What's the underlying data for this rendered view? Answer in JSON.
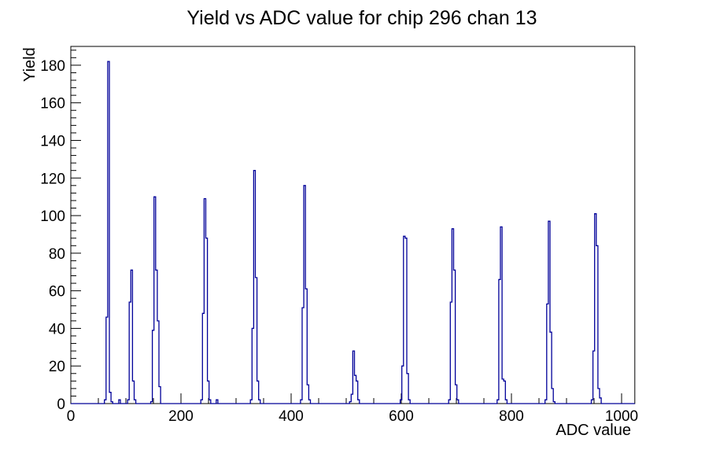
{
  "chart_data": {
    "type": "bar",
    "title": "Yield vs ADC value for chip 296 chan 13",
    "xlabel": "ADC value",
    "ylabel": "Yield",
    "xlim": [
      0,
      1024
    ],
    "ylim": [
      0,
      190
    ],
    "x_major_ticks": [
      0,
      200,
      400,
      600,
      800,
      1000
    ],
    "x_minor_step": 50,
    "y_major_ticks": [
      0,
      20,
      40,
      60,
      80,
      100,
      120,
      140,
      160,
      180
    ],
    "y_minor_step": 4,
    "grid": "off",
    "legend": "none",
    "line_color": "#000099",
    "frame_color": "#000000",
    "background_color": "#ffffff",
    "bin_width": 3,
    "peaks": [
      {
        "adc": 67,
        "yield": 182
      },
      {
        "adc": 109,
        "yield": 71
      },
      {
        "adc": 151,
        "yield": 110
      },
      {
        "adc": 242,
        "yield": 109
      },
      {
        "adc": 332,
        "yield": 124
      },
      {
        "adc": 423,
        "yield": 116
      },
      {
        "adc": 512,
        "yield": 28
      },
      {
        "adc": 604,
        "yield": 89
      },
      {
        "adc": 692,
        "yield": 93
      },
      {
        "adc": 780,
        "yield": 94
      },
      {
        "adc": 867,
        "yield": 97
      },
      {
        "adc": 951,
        "yield": 101
      }
    ],
    "bins": [
      [
        61,
        2
      ],
      [
        64,
        46
      ],
      [
        67,
        182
      ],
      [
        70,
        6
      ],
      [
        73,
        1
      ],
      [
        87,
        2
      ],
      [
        103,
        2
      ],
      [
        106,
        54
      ],
      [
        109,
        71
      ],
      [
        112,
        12
      ],
      [
        115,
        2
      ],
      [
        145,
        1
      ],
      [
        148,
        39
      ],
      [
        151,
        110
      ],
      [
        154,
        71
      ],
      [
        157,
        44
      ],
      [
        160,
        9
      ],
      [
        236,
        2
      ],
      [
        239,
        48
      ],
      [
        242,
        109
      ],
      [
        245,
        88
      ],
      [
        248,
        12
      ],
      [
        251,
        2
      ],
      [
        264,
        2
      ],
      [
        326,
        2
      ],
      [
        329,
        40
      ],
      [
        332,
        124
      ],
      [
        335,
        67
      ],
      [
        338,
        12
      ],
      [
        341,
        2
      ],
      [
        417,
        2
      ],
      [
        420,
        51
      ],
      [
        423,
        116
      ],
      [
        426,
        61
      ],
      [
        429,
        10
      ],
      [
        432,
        2
      ],
      [
        506,
        1
      ],
      [
        509,
        5
      ],
      [
        512,
        28
      ],
      [
        515,
        15
      ],
      [
        518,
        12
      ],
      [
        521,
        2
      ],
      [
        598,
        2
      ],
      [
        601,
        20
      ],
      [
        604,
        89
      ],
      [
        607,
        88
      ],
      [
        610,
        16
      ],
      [
        613,
        2
      ],
      [
        686,
        2
      ],
      [
        689,
        54
      ],
      [
        692,
        93
      ],
      [
        695,
        71
      ],
      [
        698,
        10
      ],
      [
        701,
        2
      ],
      [
        774,
        2
      ],
      [
        777,
        66
      ],
      [
        780,
        94
      ],
      [
        783,
        13
      ],
      [
        786,
        12
      ],
      [
        789,
        2
      ],
      [
        861,
        2
      ],
      [
        864,
        53
      ],
      [
        867,
        97
      ],
      [
        870,
        38
      ],
      [
        873,
        8
      ],
      [
        876,
        1
      ],
      [
        945,
        2
      ],
      [
        948,
        28
      ],
      [
        951,
        101
      ],
      [
        954,
        84
      ],
      [
        957,
        8
      ],
      [
        960,
        3
      ]
    ]
  }
}
